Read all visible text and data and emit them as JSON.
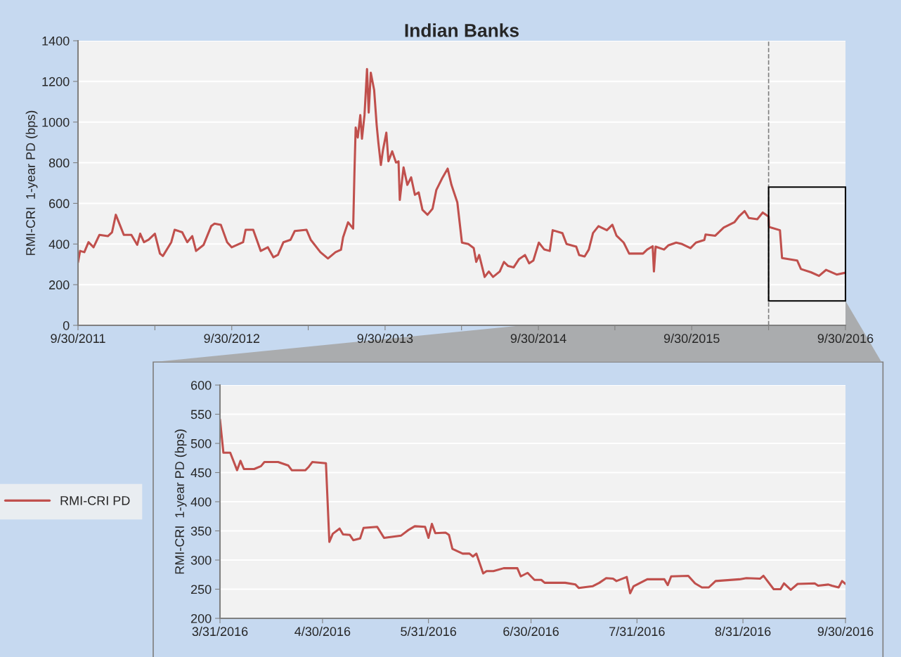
{
  "chart_data": [
    {
      "type": "line",
      "title": "Indian Banks",
      "ylabel": "RMI-CRI  1-year PD (bps)",
      "xlim": [
        "2011-09-30",
        "2016-09-30"
      ],
      "ylim": [
        0,
        1400
      ],
      "xticks": [
        {
          "value": "2011-09-30",
          "label": "9/30/2011"
        },
        {
          "value": "2012-03-31",
          "label": null
        },
        {
          "value": "2012-09-30",
          "label": "9/30/2012"
        },
        {
          "value": "2013-03-31",
          "label": null
        },
        {
          "value": "2013-09-30",
          "label": "9/30/2013"
        },
        {
          "value": "2014-03-31",
          "label": null
        },
        {
          "value": "2014-09-30",
          "label": "9/30/2014"
        },
        {
          "value": "2015-03-31",
          "label": null
        },
        {
          "value": "2015-09-30",
          "label": "9/30/2015"
        },
        {
          "value": "2016-03-31",
          "label": null
        },
        {
          "value": "2016-09-30",
          "label": "9/30/2016"
        }
      ],
      "yticks": [
        0,
        200,
        400,
        600,
        800,
        1000,
        1200,
        1400
      ],
      "grid": "y",
      "legend": false,
      "ref_lines": [
        {
          "axis": "x",
          "value": "2016-03-31",
          "color": "#808080",
          "line_style": "dashed"
        }
      ],
      "series": [
        {
          "color": "#c0504d",
          "x": [
            "2011-09-30",
            "2011-10-05",
            "2011-10-15",
            "2011-10-25",
            "2011-11-06",
            "2011-11-20",
            "2011-12-10",
            "2011-12-20",
            "2011-12-29",
            "2012-01-10",
            "2012-01-17",
            "2012-02-04",
            "2012-02-18",
            "2012-02-25",
            "2012-03-05",
            "2012-03-16",
            "2012-03-31",
            "2012-04-12",
            "2012-04-19",
            "2012-05-09",
            "2012-05-17",
            "2012-06-04",
            "2012-06-16",
            "2012-06-28",
            "2012-07-07",
            "2012-07-25",
            "2012-08-12",
            "2012-08-20",
            "2012-09-04",
            "2012-09-19",
            "2012-09-30",
            "2012-10-27",
            "2012-11-02",
            "2012-11-20",
            "2012-12-08",
            "2012-12-25",
            "2013-01-07",
            "2013-01-18",
            "2013-01-31",
            "2013-02-17",
            "2013-02-27",
            "2013-03-27",
            "2013-04-06",
            "2013-04-29",
            "2013-05-17",
            "2013-06-04",
            "2013-06-17",
            "2013-06-22",
            "2013-07-04",
            "2013-07-16",
            "2013-07-19",
            "2013-07-22",
            "2013-07-27",
            "2013-08-02",
            "2013-08-06",
            "2013-08-12",
            "2013-08-18",
            "2013-08-22",
            "2013-08-27",
            "2013-09-04",
            "2013-09-10",
            "2013-09-14",
            "2013-09-20",
            "2013-09-25",
            "2013-10-03",
            "2013-10-08",
            "2013-10-17",
            "2013-10-26",
            "2013-11-01",
            "2013-11-04",
            "2013-11-13",
            "2013-11-22",
            "2013-12-01",
            "2013-12-10",
            "2013-12-19",
            "2013-12-28",
            "2014-01-09",
            "2014-01-21",
            "2014-01-30",
            "2014-02-14",
            "2014-02-26",
            "2014-03-07",
            "2014-03-21",
            "2014-04-01",
            "2014-04-16",
            "2014-04-29",
            "2014-05-05",
            "2014-05-12",
            "2014-05-25",
            "2014-06-04",
            "2014-06-14",
            "2014-06-30",
            "2014-07-10",
            "2014-07-20",
            "2014-08-02",
            "2014-08-15",
            "2014-08-29",
            "2014-09-08",
            "2014-09-18",
            "2014-10-01",
            "2014-10-14",
            "2014-10-27",
            "2014-11-03",
            "2014-11-26",
            "2014-12-06",
            "2014-12-29",
            "2015-01-05",
            "2015-01-18",
            "2015-01-28",
            "2015-02-07",
            "2015-02-20",
            "2015-03-12",
            "2015-03-25",
            "2015-04-04",
            "2015-04-21",
            "2015-05-04",
            "2015-06-06",
            "2015-06-16",
            "2015-06-29",
            "2015-07-02",
            "2015-07-06",
            "2015-07-26",
            "2015-08-05",
            "2015-08-24",
            "2015-09-07",
            "2015-09-27",
            "2015-10-10",
            "2015-10-30",
            "2015-11-02",
            "2015-11-25",
            "2015-12-15",
            "2016-01-10",
            "2016-01-20",
            "2016-02-03",
            "2016-02-13",
            "2016-03-04",
            "2016-03-17",
            "2016-03-31",
            "2016-04-01",
            "2016-04-27",
            "2016-05-02",
            "2016-06-07",
            "2016-06-16",
            "2016-07-10",
            "2016-07-29",
            "2016-08-15",
            "2016-09-09",
            "2016-09-30"
          ],
          "values": [
            310,
            366,
            360,
            409,
            384,
            445,
            439,
            458,
            544,
            482,
            445,
            445,
            396,
            451,
            409,
            421,
            451,
            353,
            341,
            409,
            470,
            458,
            409,
            439,
            366,
            396,
            488,
            500,
            494,
            409,
            384,
            409,
            470,
            470,
            366,
            384,
            335,
            347,
            409,
            421,
            464,
            470,
            421,
            360,
            329,
            360,
            372,
            433,
            507,
            476,
            746,
            973,
            924,
            1034,
            918,
            1034,
            1261,
            1047,
            1243,
            1157,
            985,
            899,
            789,
            863,
            948,
            807,
            856,
            801,
            807,
            617,
            777,
            691,
            728,
            642,
            654,
            568,
            544,
            574,
            666,
            728,
            771,
            691,
            605,
            407,
            400,
            380,
            312,
            346,
            238,
            265,
            238,
            265,
            312,
            292,
            285,
            326,
            346,
            305,
            319,
            407,
            373,
            366,
            468,
            454,
            400,
            387,
            346,
            339,
            373,
            454,
            488,
            468,
            495,
            441,
            407,
            353,
            353,
            373,
            389,
            265,
            387,
            373,
            393,
            407,
            400,
            380,
            407,
            420,
            447,
            441,
            481,
            508,
            535,
            562,
            528,
            522,
            555,
            535,
            484,
            468,
            331,
            319,
            277,
            261,
            243,
            273,
            250,
            259
          ]
        }
      ]
    },
    {
      "type": "line",
      "ylabel": "RMI-CRI  1-year PD (bps)",
      "xlim": [
        "2016-03-31",
        "2016-09-30"
      ],
      "ylim": [
        200,
        600
      ],
      "xticks": [
        {
          "value": "2016-03-31",
          "label": "3/31/2016"
        },
        {
          "value": "2016-04-30",
          "label": "4/30/2016"
        },
        {
          "value": "2016-05-31",
          "label": "5/31/2016"
        },
        {
          "value": "2016-06-30",
          "label": "6/30/2016"
        },
        {
          "value": "2016-07-31",
          "label": "7/31/2016"
        },
        {
          "value": "2016-08-31",
          "label": "8/31/2016"
        },
        {
          "value": "2016-09-30",
          "label": "9/30/2016"
        }
      ],
      "yticks": [
        200,
        250,
        300,
        350,
        400,
        450,
        500,
        550,
        600
      ],
      "grid": "y",
      "legend": "left",
      "series": [
        {
          "name": "RMI-CRI PD",
          "color": "#c0504d",
          "x": [
            "2016-03-31",
            "2016-04-01",
            "2016-04-03",
            "2016-04-05",
            "2016-04-06",
            "2016-04-07",
            "2016-04-10",
            "2016-04-12",
            "2016-04-13",
            "2016-04-17",
            "2016-04-20",
            "2016-04-21",
            "2016-04-25",
            "2016-04-26",
            "2016-04-27",
            "2016-05-01",
            "2016-05-02",
            "2016-05-03",
            "2016-05-05",
            "2016-05-06",
            "2016-05-08",
            "2016-05-09",
            "2016-05-11",
            "2016-05-12",
            "2016-05-16",
            "2016-05-18",
            "2016-05-23",
            "2016-05-25",
            "2016-05-27",
            "2016-05-30",
            "2016-05-31",
            "2016-06-01",
            "2016-06-02",
            "2016-06-05",
            "2016-06-06",
            "2016-06-07",
            "2016-06-10",
            "2016-06-12",
            "2016-06-13",
            "2016-06-14",
            "2016-06-16",
            "2016-06-17",
            "2016-06-19",
            "2016-06-22",
            "2016-06-26",
            "2016-06-27",
            "2016-06-29",
            "2016-07-01",
            "2016-07-03",
            "2016-07-04",
            "2016-07-10",
            "2016-07-13",
            "2016-07-14",
            "2016-07-18",
            "2016-07-20",
            "2016-07-22",
            "2016-07-24",
            "2016-07-25",
            "2016-07-28",
            "2016-07-29",
            "2016-07-30",
            "2016-08-03",
            "2016-08-08",
            "2016-08-09",
            "2016-08-10",
            "2016-08-15",
            "2016-08-17",
            "2016-08-19",
            "2016-08-21",
            "2016-08-23",
            "2016-08-30",
            "2016-09-01",
            "2016-09-05",
            "2016-09-06",
            "2016-09-09",
            "2016-09-11",
            "2016-09-12",
            "2016-09-14",
            "2016-09-16",
            "2016-09-21",
            "2016-09-22",
            "2016-09-25",
            "2016-09-26",
            "2016-09-28",
            "2016-09-29",
            "2016-09-30"
          ],
          "values": [
            541,
            484,
            484,
            454,
            470,
            456,
            456,
            461,
            468,
            468,
            462,
            454,
            454,
            460,
            468,
            466,
            331,
            345,
            354,
            344,
            343,
            334,
            337,
            355,
            357,
            338,
            342,
            351,
            358,
            357,
            338,
            362,
            346,
            347,
            343,
            319,
            311,
            311,
            306,
            311,
            277,
            281,
            281,
            286,
            286,
            272,
            278,
            266,
            266,
            261,
            261,
            258,
            252,
            255,
            261,
            269,
            268,
            264,
            271,
            243,
            255,
            267,
            267,
            257,
            272,
            273,
            260,
            253,
            253,
            264,
            267,
            269,
            268,
            273,
            250,
            250,
            260,
            249,
            259,
            260,
            256,
            258,
            256,
            253,
            264,
            259
          ]
        }
      ]
    }
  ]
}
